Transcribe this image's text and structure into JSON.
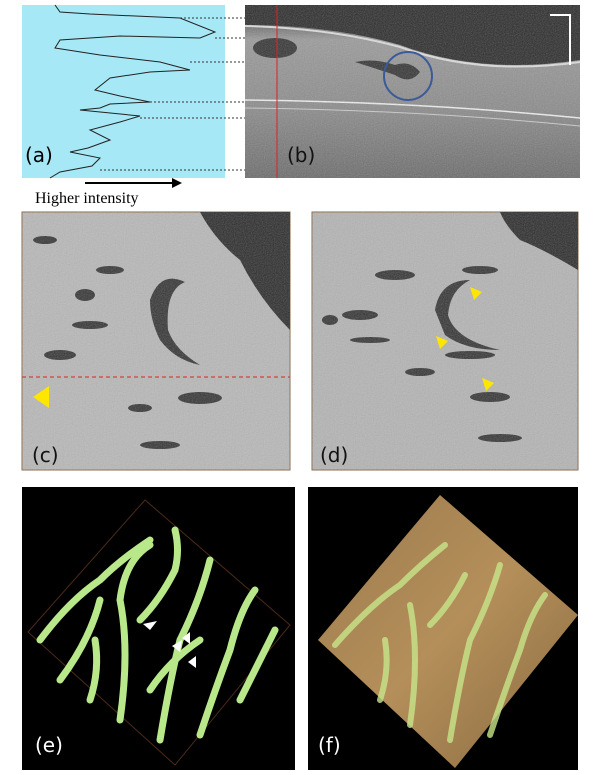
{
  "panels": [
    {
      "label": "(a)"
    },
    {
      "label": "(b)"
    },
    {
      "label": "(c)"
    },
    {
      "label": "(d)"
    },
    {
      "label": "(e)"
    },
    {
      "label": "(f)"
    }
  ],
  "intensity_arrow": {
    "label": "Higher intensity"
  }
}
